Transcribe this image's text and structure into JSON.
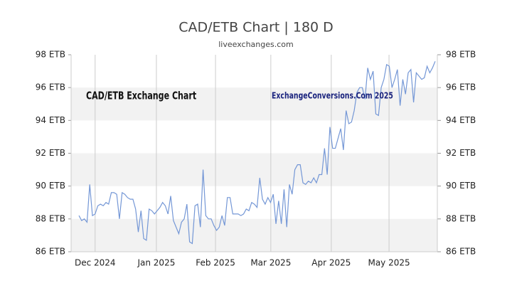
{
  "chart_data": {
    "type": "line",
    "title": "CAD/ETB Chart | 180 D",
    "subtitle": "liveexchanges.com",
    "annotations": [
      "CAD/ETB Exchange Chart",
      "ExchangeConversions.Com 2025"
    ],
    "series": [
      {
        "name": "CAD/ETB",
        "color": "#7497d6",
        "values": [
          88.2,
          87.9,
          88.0,
          87.8,
          90.1,
          88.2,
          88.3,
          88.8,
          88.9,
          88.8,
          89.0,
          88.9,
          89.6,
          89.6,
          89.5,
          88.0,
          89.6,
          89.5,
          89.3,
          89.2,
          89.2,
          88.6,
          87.2,
          88.5,
          86.8,
          86.7,
          88.6,
          88.5,
          88.3,
          88.5,
          88.7,
          89.0,
          88.8,
          88.3,
          89.4,
          87.9,
          87.5,
          87.1,
          87.8,
          88.0,
          88.9,
          86.6,
          86.5,
          88.8,
          88.9,
          87.5,
          91.0,
          88.2,
          88.0,
          88.0,
          87.6,
          87.3,
          87.5,
          88.2,
          87.6,
          89.3,
          89.3,
          88.3,
          88.3,
          88.3,
          88.2,
          88.3,
          88.6,
          88.5,
          89.0,
          88.9,
          88.7,
          90.5,
          89.2,
          88.9,
          89.3,
          89.0,
          89.5,
          87.7,
          89.1,
          87.7,
          89.8,
          87.5,
          90.1,
          89.5,
          91.0,
          91.3,
          91.3,
          90.2,
          90.1,
          90.3,
          90.2,
          90.5,
          90.2,
          90.7,
          90.7,
          92.3,
          90.7,
          93.6,
          92.3,
          92.3,
          92.9,
          93.5,
          92.2,
          94.6,
          93.8,
          93.9,
          94.6,
          95.7,
          96.0,
          96.0,
          95.3,
          97.2,
          96.5,
          97.0,
          94.4,
          94.3,
          96.0,
          96.5,
          97.4,
          97.3,
          96.0,
          96.5,
          97.1,
          94.9,
          96.5,
          95.6,
          96.9,
          97.1,
          95.1,
          96.9,
          96.7,
          96.5,
          96.6,
          97.3,
          96.9,
          97.2,
          97.6
        ]
      }
    ],
    "xlim": [
      -2.9,
      132.8
    ],
    "xticks": [
      {
        "value": 6,
        "label": "Dec 2024"
      },
      {
        "value": 28.7,
        "label": "Jan 2025"
      },
      {
        "value": 50.6,
        "label": "Feb 2025"
      },
      {
        "value": 71.1,
        "label": "Mar 2025"
      },
      {
        "value": 93.5,
        "label": "Apr 2025"
      },
      {
        "value": 114.9,
        "label": "May 2025"
      }
    ],
    "ylim": [
      86,
      98
    ],
    "yticks": [
      {
        "value": 86,
        "label": "86 ETB"
      },
      {
        "value": 88,
        "label": "88 ETB"
      },
      {
        "value": 90,
        "label": "90 ETB"
      },
      {
        "value": 92,
        "label": "92 ETB"
      },
      {
        "value": 94,
        "label": "94 ETB"
      },
      {
        "value": 96,
        "label": "96 ETB"
      },
      {
        "value": 98,
        "label": "98 ETB"
      }
    ],
    "y2lim": [
      86,
      98
    ],
    "y2ticks": [
      {
        "value": 86,
        "label": "86 ETB"
      },
      {
        "value": 88,
        "label": "88 ETB"
      },
      {
        "value": 90,
        "label": "90 ETB"
      },
      {
        "value": 92,
        "label": "92 ETB"
      },
      {
        "value": 94,
        "label": "94 ETB"
      },
      {
        "value": 96,
        "label": "96 ETB"
      },
      {
        "value": 98,
        "label": "98 ETB"
      }
    ],
    "grid": true
  }
}
